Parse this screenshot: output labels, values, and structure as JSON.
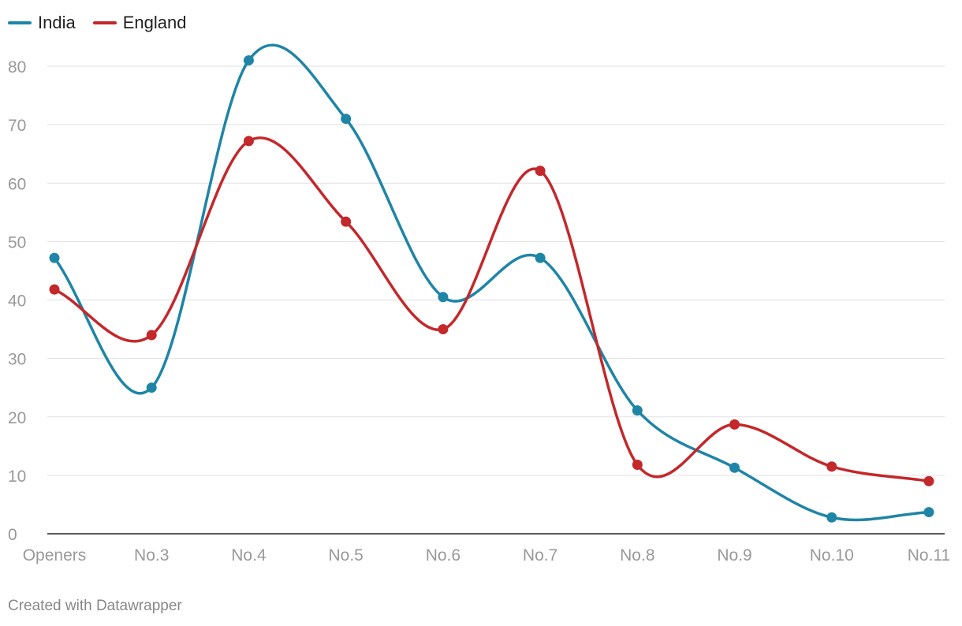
{
  "legend": {
    "india_label": "India",
    "england_label": "England"
  },
  "credit": "Created with Datawrapper",
  "colors": {
    "india": "#1f85a6",
    "england": "#c3282b",
    "grid": "#e1e1e1",
    "axis": "#222222",
    "tick_text": "#999999"
  },
  "chart_data": {
    "type": "line",
    "categories": [
      "Openers",
      "No.3",
      "No.4",
      "No.5",
      "No.6",
      "No.7",
      "No.8",
      "No.9",
      "No.10",
      "No.11"
    ],
    "series": [
      {
        "name": "India",
        "values": [
          47.2,
          25.0,
          81.0,
          71.0,
          40.5,
          47.2,
          21.1,
          11.3,
          2.8,
          3.7
        ]
      },
      {
        "name": "England",
        "values": [
          41.8,
          34.0,
          67.2,
          53.4,
          35.0,
          62.1,
          11.8,
          18.7,
          11.5,
          9.0
        ]
      }
    ],
    "title": "",
    "xlabel": "",
    "ylabel": "",
    "ylim": [
      0,
      80
    ],
    "yticks": [
      0,
      10,
      20,
      30,
      40,
      50,
      60,
      70,
      80
    ],
    "grid": true,
    "legend_position": "top-left",
    "curve": "smooth"
  }
}
